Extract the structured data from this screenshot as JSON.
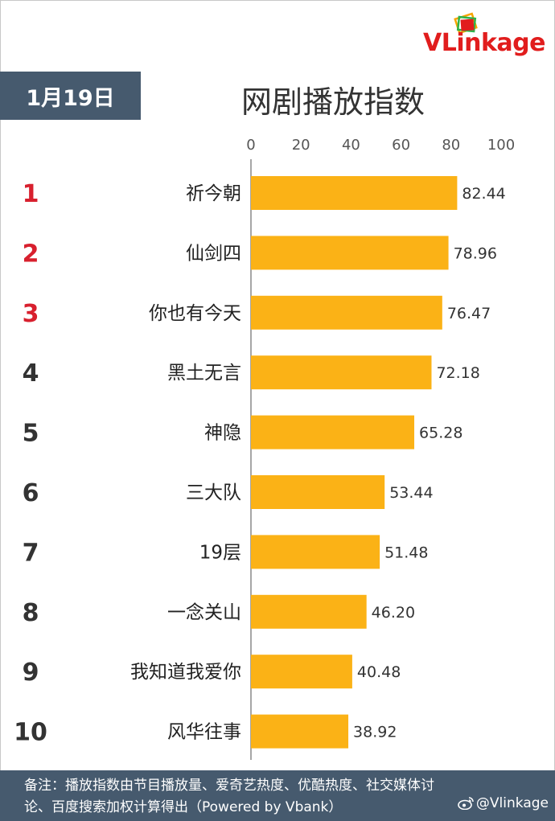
{
  "logo": {
    "text_v": "V",
    "text_rest": "Linkage"
  },
  "header": {
    "date": "1月19日",
    "title": "网剧播放指数"
  },
  "chart_data": {
    "type": "bar",
    "orientation": "horizontal",
    "xlim": [
      0,
      100
    ],
    "x_ticks": [
      "0",
      "20",
      "40",
      "60",
      "80",
      "100"
    ],
    "ranks": [
      "1",
      "2",
      "3",
      "4",
      "5",
      "6",
      "7",
      "8",
      "9",
      "10"
    ],
    "categories": [
      "祈今朝",
      "仙剑四",
      "你也有今天",
      "黑土无言",
      "神隐",
      "三大队",
      "19层",
      "一念关山",
      "我知道我爱你",
      "风华往事"
    ],
    "values": [
      82.44,
      78.96,
      76.47,
      72.18,
      65.28,
      53.44,
      51.48,
      46.2,
      40.48,
      38.92
    ],
    "value_labels": [
      "82.44",
      "78.96",
      "76.47",
      "72.18",
      "65.28",
      "53.44",
      "51.48",
      "46.20",
      "40.48",
      "38.92"
    ],
    "bar_color": "#fbb216",
    "top_rank_color": "#d8202e",
    "rank_color": "#333333",
    "grid": false
  },
  "footer": {
    "line1": "备注：播放指数由节目播放量、爱奇艺热度、优酷热度、社交媒体讨",
    "line2": "论、百度搜索加权计算得出（Powered by Vbank）",
    "watermark": "@Vlinkage"
  }
}
